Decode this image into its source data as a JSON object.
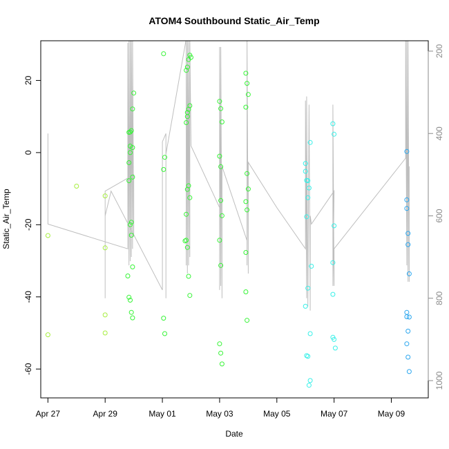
{
  "chart_data": {
    "type": "scatter",
    "title": "ATOM4 Southbound Static_Air_Temp",
    "xlabel": "Date",
    "ylabel": "Static_Air_Temp",
    "x_ticks": [
      "Apr 27",
      "Apr 29",
      "May 01",
      "May 03",
      "May 05",
      "May 07",
      "May 09"
    ],
    "xlim": [
      "2016-04-26T18:00",
      "2016-05-10T07:00"
    ],
    "ylim": [
      -68,
      31
    ],
    "y_ticks": [
      -60,
      -40,
      -20,
      0,
      20
    ],
    "y2_label": "",
    "y2_ticks": [
      200,
      400,
      600,
      800,
      1000
    ],
    "y2_direction": "reversed (pressure, 1000 at bottom)",
    "grid": false,
    "legend": "none",
    "colors": {
      "points_early": "#a6ee3e",
      "points_mid": "#35f435",
      "points_late": "#37f0e8",
      "points_last": "#2aa6ef",
      "pressure_line": "#bebebe"
    },
    "series": [
      {
        "type": "scatter",
        "color_scale": "yellow-green to blue by time",
        "points": [
          {
            "x": "2016-04-27T00:00",
            "y": -23.0
          },
          {
            "x": "2016-04-27T00:00",
            "y": -50.5
          },
          {
            "x": "2016-04-28T00:00",
            "y": -9.3
          },
          {
            "x": "2016-04-29T00:00",
            "y": -12.0
          },
          {
            "x": "2016-04-29T00:00",
            "y": -26.4
          },
          {
            "x": "2016-04-29T00:00",
            "y": -45.0
          },
          {
            "x": "2016-04-29T00:00",
            "y": -50.0
          },
          {
            "x": "2016-04-29T19:00",
            "y": -34.2
          },
          {
            "x": "2016-04-29T20:00",
            "y": 5.6
          },
          {
            "x": "2016-04-29T20:00",
            "y": -2.8
          },
          {
            "x": "2016-04-29T20:00",
            "y": -7.8
          },
          {
            "x": "2016-04-29T21:00",
            "y": 5.7
          },
          {
            "x": "2016-04-29T21:00",
            "y": 1.8
          },
          {
            "x": "2016-04-29T21:00",
            "y": 0.0
          },
          {
            "x": "2016-04-29T21:00",
            "y": -20.0
          },
          {
            "x": "2016-04-29T20:00",
            "y": -40.1
          },
          {
            "x": "2016-04-29T21:00",
            "y": -40.9
          },
          {
            "x": "2016-04-29T22:00",
            "y": 6.1
          },
          {
            "x": "2016-04-29T22:00",
            "y": -19.3
          },
          {
            "x": "2016-04-29T22:00",
            "y": -22.9
          },
          {
            "x": "2016-04-29T22:00",
            "y": -44.3
          },
          {
            "x": "2016-04-29T23:00",
            "y": 12.1
          },
          {
            "x": "2016-04-29T23:00",
            "y": 1.4
          },
          {
            "x": "2016-04-29T23:00",
            "y": -6.8
          },
          {
            "x": "2016-04-29T23:00",
            "y": -31.7
          },
          {
            "x": "2016-04-29T23:00",
            "y": -45.8
          },
          {
            "x": "2016-04-30T00:00",
            "y": 16.5
          },
          {
            "x": "2016-05-01T01:00",
            "y": 27.4
          },
          {
            "x": "2016-05-01T01:00",
            "y": -4.7
          },
          {
            "x": "2016-05-01T02:00",
            "y": -1.3
          },
          {
            "x": "2016-05-01T01:00",
            "y": -45.9
          },
          {
            "x": "2016-05-01T02:00",
            "y": -50.2
          },
          {
            "x": "2016-05-01T20:00",
            "y": 22.8
          },
          {
            "x": "2016-05-01T20:00",
            "y": 8.3
          },
          {
            "x": "2016-05-01T20:00",
            "y": -17.1
          },
          {
            "x": "2016-05-01T19:00",
            "y": -24.5
          },
          {
            "x": "2016-05-01T20:00",
            "y": -24.3
          },
          {
            "x": "2016-05-01T21:00",
            "y": 23.7
          },
          {
            "x": "2016-05-01T21:00",
            "y": 11.1
          },
          {
            "x": "2016-05-01T21:00",
            "y": 10.0
          },
          {
            "x": "2016-05-01T21:00",
            "y": -10.2
          },
          {
            "x": "2016-05-01T21:00",
            "y": -26.3
          },
          {
            "x": "2016-05-01T22:00",
            "y": 25.8
          },
          {
            "x": "2016-05-01T22:00",
            "y": 12.0
          },
          {
            "x": "2016-05-01T22:00",
            "y": -9.2
          },
          {
            "x": "2016-05-01T22:00",
            "y": -34.3
          },
          {
            "x": "2016-05-01T23:00",
            "y": 27.0
          },
          {
            "x": "2016-05-01T23:00",
            "y": 13.0
          },
          {
            "x": "2016-05-01T23:00",
            "y": -12.5
          },
          {
            "x": "2016-05-01T23:00",
            "y": -39.6
          },
          {
            "x": "2016-05-02T00:00",
            "y": 26.4
          },
          {
            "x": "2016-05-03T00:00",
            "y": 14.2
          },
          {
            "x": "2016-05-03T00:00",
            "y": -1.0
          },
          {
            "x": "2016-05-03T00:00",
            "y": -24.3
          },
          {
            "x": "2016-05-03T00:00",
            "y": -53.0
          },
          {
            "x": "2016-05-03T01:00",
            "y": 12.2
          },
          {
            "x": "2016-05-03T01:00",
            "y": -3.9
          },
          {
            "x": "2016-05-03T01:00",
            "y": -13.3
          },
          {
            "x": "2016-05-03T01:00",
            "y": -31.3
          },
          {
            "x": "2016-05-03T01:00",
            "y": -55.6
          },
          {
            "x": "2016-05-03T02:00",
            "y": 8.5
          },
          {
            "x": "2016-05-03T02:00",
            "y": -17.5
          },
          {
            "x": "2016-05-03T02:00",
            "y": -58.6
          },
          {
            "x": "2016-05-03T22:00",
            "y": 22.0
          },
          {
            "x": "2016-05-03T22:00",
            "y": 12.6
          },
          {
            "x": "2016-05-03T22:00",
            "y": -13.6
          },
          {
            "x": "2016-05-03T22:00",
            "y": -27.7
          },
          {
            "x": "2016-05-03T22:00",
            "y": -38.6
          },
          {
            "x": "2016-05-03T23:00",
            "y": 19.2
          },
          {
            "x": "2016-05-03T23:00",
            "y": -5.8
          },
          {
            "x": "2016-05-03T23:00",
            "y": -15.9
          },
          {
            "x": "2016-05-03T23:00",
            "y": -46.5
          },
          {
            "x": "2016-05-04T00:00",
            "y": 16.1
          },
          {
            "x": "2016-05-04T00:00",
            "y": -10.1
          },
          {
            "x": "2016-05-06T00:00",
            "y": -3.0
          },
          {
            "x": "2016-05-06T00:00",
            "y": -5.2
          },
          {
            "x": "2016-05-06T00:00",
            "y": -42.6
          },
          {
            "x": "2016-05-06T01:00",
            "y": -7.7
          },
          {
            "x": "2016-05-06T01:00",
            "y": -17.8
          },
          {
            "x": "2016-05-06T01:00",
            "y": -56.3
          },
          {
            "x": "2016-05-06T02:00",
            "y": -7.8
          },
          {
            "x": "2016-05-06T02:00",
            "y": -12.5
          },
          {
            "x": "2016-05-06T02:00",
            "y": -37.6
          },
          {
            "x": "2016-05-06T02:00",
            "y": -56.5
          },
          {
            "x": "2016-05-06T03:00",
            "y": -9.8
          },
          {
            "x": "2016-05-06T03:00",
            "y": -64.5
          },
          {
            "x": "2016-05-06T04:00",
            "y": 2.8
          },
          {
            "x": "2016-05-06T04:00",
            "y": -50.2
          },
          {
            "x": "2016-05-06T04:00",
            "y": -63.2
          },
          {
            "x": "2016-05-06T05:00",
            "y": -31.5
          },
          {
            "x": "2016-05-06T23:00",
            "y": 8.0
          },
          {
            "x": "2016-05-06T23:00",
            "y": -30.5
          },
          {
            "x": "2016-05-06T23:00",
            "y": -39.3
          },
          {
            "x": "2016-05-06T23:00",
            "y": -51.2
          },
          {
            "x": "2016-05-07T00:00",
            "y": 5.1
          },
          {
            "x": "2016-05-07T00:00",
            "y": -20.3
          },
          {
            "x": "2016-05-07T00:00",
            "y": -51.8
          },
          {
            "x": "2016-05-07T01:00",
            "y": -54.2
          },
          {
            "x": "2016-05-09T13:00",
            "y": 0.3
          },
          {
            "x": "2016-05-09T13:00",
            "y": -13.1
          },
          {
            "x": "2016-05-09T13:00",
            "y": -15.5
          },
          {
            "x": "2016-05-09T14:00",
            "y": -22.4
          },
          {
            "x": "2016-05-09T14:00",
            "y": -25.5
          },
          {
            "x": "2016-05-09T15:00",
            "y": -33.6
          },
          {
            "x": "2016-05-09T13:00",
            "y": -44.3
          },
          {
            "x": "2016-05-09T13:00",
            "y": -45.5
          },
          {
            "x": "2016-05-09T14:00",
            "y": -49.5
          },
          {
            "x": "2016-05-09T13:00",
            "y": -53.0
          },
          {
            "x": "2016-05-09T14:00",
            "y": -56.7
          },
          {
            "x": "2016-05-09T15:00",
            "y": -45.6
          },
          {
            "x": "2016-05-09T15:00",
            "y": -60.7
          }
        ]
      },
      {
        "type": "line",
        "axis": "right",
        "path": [
          {
            "x": "2016-04-27T00:00",
            "y2": 400
          },
          {
            "x": "2016-04-27T00:00",
            "y2": 620
          },
          {
            "x": "2016-04-29T19:00",
            "y2": 680
          },
          {
            "x": "2016-04-29T19:00",
            "y2": 200
          },
          {
            "x": "2016-04-29T19:00",
            "y2": 550
          },
          {
            "x": "2016-04-29T19:00",
            "y2": 180
          },
          {
            "x": "2016-04-29T20:00",
            "y2": 720
          },
          {
            "x": "2016-04-29T20:00",
            "y2": 170
          },
          {
            "x": "2016-04-29T21:00",
            "y2": 710
          },
          {
            "x": "2016-04-29T21:00",
            "y2": 170
          },
          {
            "x": "2016-04-29T22:00",
            "y2": 700
          },
          {
            "x": "2016-04-29T22:00",
            "y2": 170
          },
          {
            "x": "2016-04-29T23:00",
            "y2": 680
          },
          {
            "x": "2016-04-29T23:00",
            "y2": 170
          },
          {
            "x": "2016-04-30T00:00",
            "y2": 650
          },
          {
            "x": "2016-04-30T00:00",
            "y2": 500
          },
          {
            "x": "2016-04-29T00:00",
            "y2": 540
          },
          {
            "x": "2016-04-29T00:00",
            "y2": 800
          },
          {
            "x": "2016-04-29T00:00",
            "y2": 600
          },
          {
            "x": "2016-04-29T05:00",
            "y2": 540
          },
          {
            "x": "2016-05-01T00:00",
            "y2": 780
          },
          {
            "x": "2016-05-01T00:00",
            "y2": 420
          },
          {
            "x": "2016-05-01T03:00",
            "y2": 400
          },
          {
            "x": "2016-05-01T03:00",
            "y2": 800
          },
          {
            "x": "2016-05-01T03:00",
            "y2": 450
          },
          {
            "x": "2016-05-01T20:00",
            "y2": 170
          },
          {
            "x": "2016-05-01T20:00",
            "y2": 720
          },
          {
            "x": "2016-05-01T20:00",
            "y2": 170
          },
          {
            "x": "2016-05-01T21:00",
            "y2": 740
          },
          {
            "x": "2016-05-01T21:00",
            "y2": 170
          },
          {
            "x": "2016-05-01T22:00",
            "y2": 720
          },
          {
            "x": "2016-05-01T22:00",
            "y2": 170
          },
          {
            "x": "2016-05-01T23:00",
            "y2": 700
          },
          {
            "x": "2016-05-01T23:00",
            "y2": 170
          },
          {
            "x": "2016-05-02T00:00",
            "y2": 430
          },
          {
            "x": "2016-05-03T00:00",
            "y2": 580
          },
          {
            "x": "2016-05-03T00:00",
            "y2": 780
          },
          {
            "x": "2016-05-03T00:00",
            "y2": 190
          },
          {
            "x": "2016-05-03T01:00",
            "y2": 770
          },
          {
            "x": "2016-05-03T01:00",
            "y2": 190
          },
          {
            "x": "2016-05-03T02:00",
            "y2": 800
          },
          {
            "x": "2016-05-03T02:00",
            "y2": 480
          },
          {
            "x": "2016-05-03T23:00",
            "y2": 660
          },
          {
            "x": "2016-05-03T23:00",
            "y2": 170
          },
          {
            "x": "2016-05-03T23:00",
            "y2": 720
          },
          {
            "x": "2016-05-03T23:00",
            "y2": 170
          },
          {
            "x": "2016-05-04T00:00",
            "y2": 740
          },
          {
            "x": "2016-05-04T00:00",
            "y2": 470
          },
          {
            "x": "2016-05-05T00:00",
            "y2": 580
          },
          {
            "x": "2016-05-06T00:00",
            "y2": 680
          },
          {
            "x": "2016-05-06T00:00",
            "y2": 320
          },
          {
            "x": "2016-05-06T01:00",
            "y2": 800
          },
          {
            "x": "2016-05-06T01:00",
            "y2": 310
          },
          {
            "x": "2016-05-06T02:00",
            "y2": 820
          },
          {
            "x": "2016-05-06T03:00",
            "y2": 330
          },
          {
            "x": "2016-05-06T04:00",
            "y2": 830
          },
          {
            "x": "2016-05-06T04:00",
            "y2": 600
          },
          {
            "x": "2016-05-06T05:00",
            "y2": 620
          },
          {
            "x": "2016-05-07T00:00",
            "y2": 540
          },
          {
            "x": "2016-05-06T23:00",
            "y2": 770
          },
          {
            "x": "2016-05-06T23:00",
            "y2": 330
          },
          {
            "x": "2016-05-07T00:00",
            "y2": 770
          },
          {
            "x": "2016-05-07T00:00",
            "y2": 680
          },
          {
            "x": "2016-05-09T12:00",
            "y2": 460
          },
          {
            "x": "2016-05-09T12:00",
            "y2": 170
          },
          {
            "x": "2016-05-09T13:00",
            "y2": 720
          },
          {
            "x": "2016-05-09T13:00",
            "y2": 170
          },
          {
            "x": "2016-05-09T14:00",
            "y2": 760
          },
          {
            "x": "2016-05-09T14:00",
            "y2": 170
          },
          {
            "x": "2016-05-09T15:00",
            "y2": 760
          },
          {
            "x": "2016-05-09T15:00",
            "y2": 480
          }
        ]
      }
    ]
  }
}
